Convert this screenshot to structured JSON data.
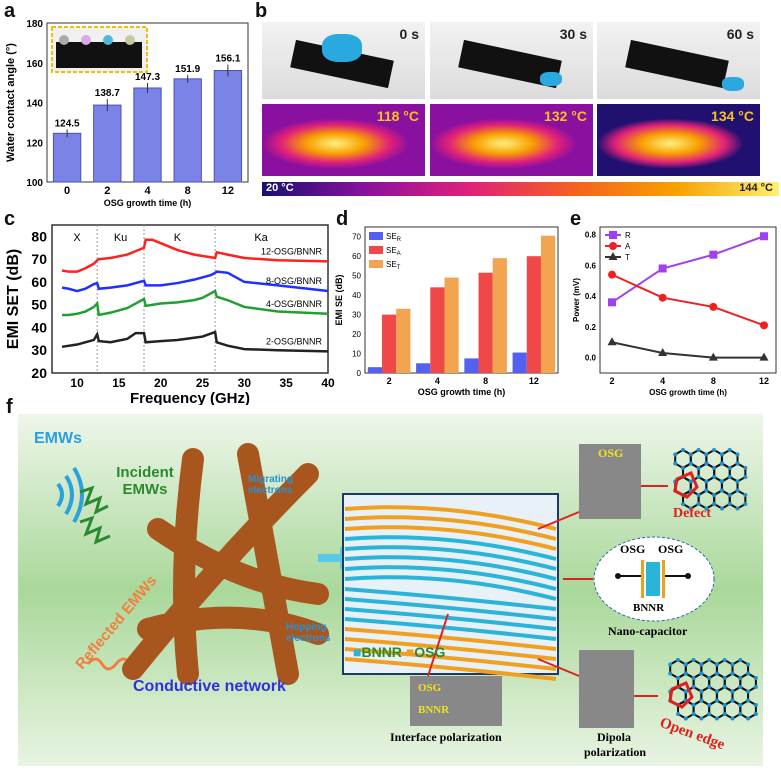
{
  "panels": {
    "a": "a",
    "b": "b",
    "c": "c",
    "d": "d",
    "e": "e",
    "f": "f"
  },
  "panel_b": {
    "times": [
      "0 s",
      "30 s",
      "60 s"
    ],
    "temps": [
      "118 °C",
      "132 °C",
      "134 °C"
    ],
    "colorbar": {
      "min": "20 °C",
      "max": "144 °C",
      "colors": [
        "#1a1070",
        "#8a10a0",
        "#e0207a",
        "#f46020",
        "#f8a000",
        "#fff070"
      ]
    }
  },
  "panel_f": {
    "emws": "EMWs",
    "incident": "Incident EMWs",
    "reflected": "Reflected EMWs",
    "migrating": "Migrating electrons",
    "hopping": "Hopping electrons",
    "network": "Conductive network",
    "legend_bnnr": "BNNR",
    "legend_osg": "OSG",
    "osg": "OSG",
    "bnnr": "BNNR",
    "defect": "Defect",
    "cap_osg1": "OSG",
    "cap_osg2": "OSG",
    "cap_bnnr": "BNNR",
    "nano_capacitor": "Nano-capacitor",
    "interface": "Interface polarization",
    "dipola1": "Dipola",
    "dipola2": "polarization",
    "open_edge": "Open edge",
    "colors": {
      "bnnr": "#2ab4d8",
      "osg": "#f0a020",
      "network": "#a8561e"
    }
  },
  "chart_data": [
    {
      "id": "a",
      "type": "bar",
      "categories": [
        "0",
        "2",
        "4",
        "8",
        "12"
      ],
      "values": [
        124.5,
        138.7,
        147.3,
        151.9,
        156.1
      ],
      "errors": [
        2,
        3,
        2.5,
        2,
        3
      ],
      "data_labels": [
        "124.5",
        "138.7",
        "147.3",
        "151.9",
        "156.1"
      ],
      "xlabel": "OSG growth time (h)",
      "ylabel": "Water contact angle (°)",
      "ylim": [
        100,
        180
      ],
      "yticks": [
        "100",
        "120",
        "140",
        "160",
        "180"
      ],
      "color": "#7b83e6"
    },
    {
      "id": "c",
      "type": "line",
      "xlabel": "Frequency (GHz)",
      "ylabel": "EMI SET (dB)",
      "xlim": [
        7,
        40
      ],
      "ylim": [
        20,
        85
      ],
      "xticks": [
        "10",
        "15",
        "20",
        "25",
        "30",
        "35",
        "40"
      ],
      "yticks": [
        "20",
        "30",
        "40",
        "50",
        "60",
        "70",
        "80"
      ],
      "bands": [
        "X",
        "Ku",
        "K",
        "Ka"
      ],
      "band_edges": [
        12.4,
        18,
        26.5
      ],
      "series": [
        {
          "name": "12-OSG/BNNR",
          "color": "#ff2020",
          "x": [
            8.2,
            9,
            10,
            11,
            12,
            12.4,
            12.6,
            14,
            16,
            18,
            18.2,
            19,
            20,
            22,
            24,
            26.5,
            26.7,
            28,
            30,
            34,
            40
          ],
          "y": [
            65,
            64.5,
            64.5,
            66,
            68,
            69.5,
            70,
            70.5,
            72,
            75,
            78.5,
            78.5,
            77,
            74,
            72,
            70.5,
            73,
            72,
            70.5,
            69.5,
            69
          ]
        },
        {
          "name": "8-OSG/BNNR",
          "color": "#2030ff",
          "x": [
            8.2,
            9,
            10,
            11,
            12,
            12.4,
            12.6,
            14,
            16,
            18,
            18.2,
            20,
            22,
            24,
            26,
            26.5,
            26.7,
            28,
            30,
            34,
            40
          ],
          "y": [
            57.5,
            57,
            56,
            57,
            59,
            59.5,
            57,
            57.5,
            58.5,
            60.5,
            58.5,
            58.5,
            59.5,
            61,
            63,
            64,
            64.5,
            64,
            60,
            58.5,
            56
          ]
        },
        {
          "name": "4-OSG/BNNR",
          "color": "#20a030",
          "x": [
            8.2,
            9,
            10,
            11,
            12,
            12.4,
            12.6,
            14,
            16,
            18,
            18.2,
            20,
            22,
            24,
            25,
            26.5,
            26.7,
            28,
            30,
            34,
            40
          ],
          "y": [
            45.5,
            45.5,
            46,
            47,
            49,
            50.5,
            45.5,
            46.5,
            48.5,
            52.5,
            49.5,
            50.5,
            51,
            52,
            53,
            56,
            53.5,
            52,
            49,
            47,
            46
          ]
        },
        {
          "name": "2-OSG/BNNR",
          "color": "#222222",
          "x": [
            8.2,
            10,
            12,
            12.4,
            12.6,
            14,
            16,
            17,
            18,
            18.2,
            20,
            22,
            24,
            25,
            26.5,
            26.7,
            28,
            30,
            34,
            40
          ],
          "y": [
            31.5,
            32.5,
            34.5,
            37,
            34,
            33.5,
            35,
            37.5,
            37.5,
            33.5,
            34,
            34.5,
            35.5,
            36,
            38,
            33.5,
            32,
            30.5,
            30,
            29.5
          ]
        }
      ]
    },
    {
      "id": "d",
      "type": "bar",
      "categories": [
        "2",
        "4",
        "8",
        "12"
      ],
      "xlabel": "OSG growth time (h)",
      "ylabel": "EMI SE (dB)",
      "ylim": [
        0,
        75
      ],
      "yticks": [
        "0",
        "10",
        "20",
        "30",
        "40",
        "50",
        "60",
        "70"
      ],
      "legend": "top-left",
      "series": [
        {
          "name": "SE_R",
          "label": "SE",
          "sub": "R",
          "color": "#5560f0",
          "values": [
            3,
            5,
            7.5,
            10.5
          ]
        },
        {
          "name": "SE_A",
          "label": "SE",
          "sub": "A",
          "color": "#f04848",
          "values": [
            30,
            44,
            51.5,
            60
          ]
        },
        {
          "name": "SE_T",
          "label": "SE",
          "sub": "T",
          "color": "#f2a450",
          "values": [
            33,
            49,
            59,
            70.5
          ]
        }
      ]
    },
    {
      "id": "e",
      "type": "line",
      "categories": [
        "2",
        "4",
        "8",
        "12"
      ],
      "xlabel": "OSG growth time (h)",
      "ylabel": "Power (mV)",
      "ylim": [
        -0.1,
        0.85
      ],
      "yticks": [
        "0.0",
        "0.2",
        "0.4",
        "0.6",
        "0.8"
      ],
      "legend": "top-left",
      "series": [
        {
          "name": "R",
          "color": "#a040f0",
          "marker": "square",
          "values": [
            0.36,
            0.58,
            0.67,
            0.79
          ]
        },
        {
          "name": "A",
          "color": "#f02020",
          "marker": "circle",
          "values": [
            0.54,
            0.39,
            0.33,
            0.21
          ]
        },
        {
          "name": "T",
          "color": "#333333",
          "marker": "triangle",
          "values": [
            0.1,
            0.03,
            0.0,
            0.0
          ]
        }
      ]
    }
  ]
}
